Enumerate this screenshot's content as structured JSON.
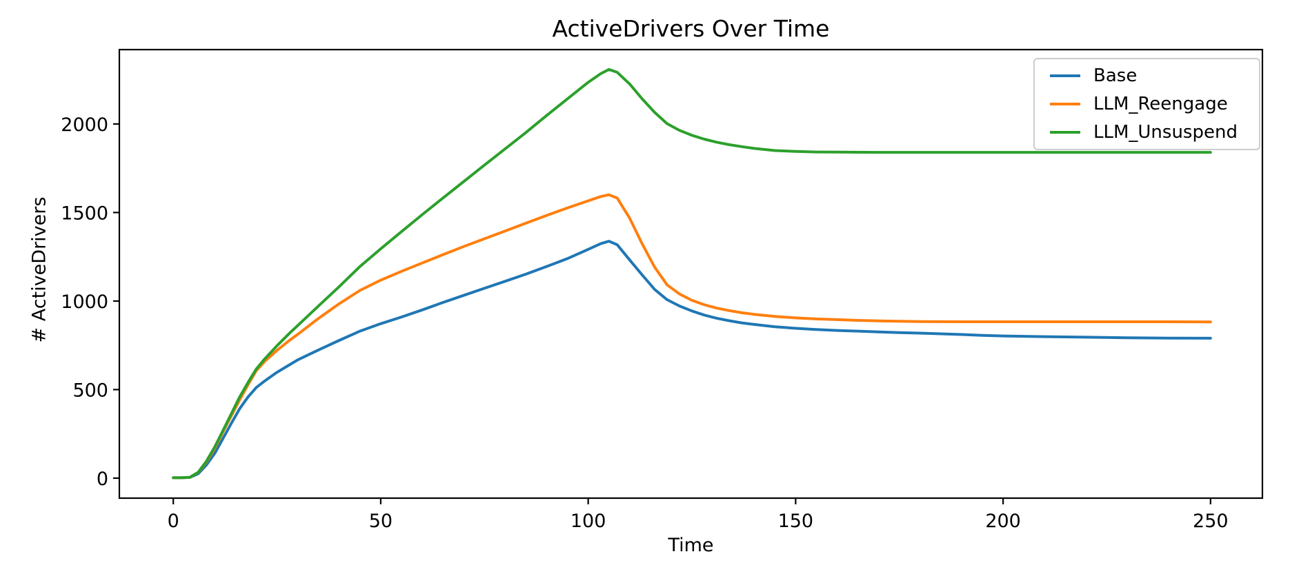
{
  "chart_data": {
    "type": "line",
    "title": "ActiveDrivers Over Time",
    "xlabel": "Time",
    "ylabel": "# ActiveDrivers",
    "x_ticks": [
      0,
      50,
      100,
      150,
      200,
      250
    ],
    "y_ticks": [
      0,
      500,
      1000,
      1500,
      2000
    ],
    "xlim": [
      -13,
      262.5
    ],
    "ylim": [
      -113,
      2420
    ],
    "grid": false,
    "legend_position": "upper right",
    "axis_color": "#000000",
    "series": [
      {
        "name": "Base",
        "color": "#1f77b4",
        "points": [
          [
            0,
            2
          ],
          [
            2,
            2
          ],
          [
            4,
            4
          ],
          [
            6,
            25
          ],
          [
            8,
            75
          ],
          [
            10,
            140
          ],
          [
            12,
            225
          ],
          [
            14,
            310
          ],
          [
            16,
            392
          ],
          [
            18,
            458
          ],
          [
            20,
            512
          ],
          [
            22,
            548
          ],
          [
            25,
            598
          ],
          [
            28,
            640
          ],
          [
            30,
            668
          ],
          [
            35,
            724
          ],
          [
            40,
            778
          ],
          [
            45,
            830
          ],
          [
            50,
            872
          ],
          [
            55,
            910
          ],
          [
            60,
            950
          ],
          [
            65,
            992
          ],
          [
            70,
            1032
          ],
          [
            75,
            1072
          ],
          [
            80,
            1112
          ],
          [
            85,
            1152
          ],
          [
            90,
            1195
          ],
          [
            95,
            1240
          ],
          [
            100,
            1292
          ],
          [
            103,
            1324
          ],
          [
            105,
            1338
          ],
          [
            107,
            1318
          ],
          [
            110,
            1232
          ],
          [
            113,
            1148
          ],
          [
            116,
            1066
          ],
          [
            119,
            1008
          ],
          [
            122,
            972
          ],
          [
            125,
            944
          ],
          [
            128,
            921
          ],
          [
            131,
            903
          ],
          [
            134,
            889
          ],
          [
            137,
            877
          ],
          [
            140,
            868
          ],
          [
            145,
            855
          ],
          [
            150,
            846
          ],
          [
            155,
            839
          ],
          [
            160,
            834
          ],
          [
            165,
            830
          ],
          [
            170,
            826
          ],
          [
            175,
            822
          ],
          [
            180,
            819
          ],
          [
            185,
            815
          ],
          [
            190,
            811
          ],
          [
            195,
            806
          ],
          [
            200,
            803
          ],
          [
            210,
            799
          ],
          [
            220,
            796
          ],
          [
            230,
            793
          ],
          [
            240,
            791
          ],
          [
            250,
            790
          ]
        ]
      },
      {
        "name": "LLM_Reengage",
        "color": "#ff7f0e",
        "points": [
          [
            0,
            2
          ],
          [
            2,
            2
          ],
          [
            4,
            5
          ],
          [
            6,
            32
          ],
          [
            8,
            92
          ],
          [
            10,
            168
          ],
          [
            12,
            262
          ],
          [
            14,
            352
          ],
          [
            16,
            442
          ],
          [
            18,
            527
          ],
          [
            20,
            607
          ],
          [
            22,
            658
          ],
          [
            25,
            722
          ],
          [
            28,
            778
          ],
          [
            30,
            812
          ],
          [
            35,
            902
          ],
          [
            40,
            985
          ],
          [
            45,
            1060
          ],
          [
            50,
            1118
          ],
          [
            55,
            1168
          ],
          [
            60,
            1215
          ],
          [
            65,
            1262
          ],
          [
            70,
            1308
          ],
          [
            75,
            1352
          ],
          [
            80,
            1396
          ],
          [
            85,
            1440
          ],
          [
            90,
            1484
          ],
          [
            95,
            1526
          ],
          [
            100,
            1566
          ],
          [
            103,
            1590
          ],
          [
            105,
            1600
          ],
          [
            107,
            1582
          ],
          [
            110,
            1468
          ],
          [
            113,
            1324
          ],
          [
            116,
            1192
          ],
          [
            119,
            1092
          ],
          [
            122,
            1040
          ],
          [
            125,
            1004
          ],
          [
            128,
            979
          ],
          [
            131,
            960
          ],
          [
            134,
            946
          ],
          [
            137,
            934
          ],
          [
            140,
            925
          ],
          [
            145,
            913
          ],
          [
            150,
            905
          ],
          [
            155,
            899
          ],
          [
            160,
            895
          ],
          [
            165,
            891
          ],
          [
            170,
            888
          ],
          [
            175,
            886
          ],
          [
            180,
            884
          ],
          [
            190,
            883
          ],
          [
            200,
            883
          ],
          [
            210,
            883
          ],
          [
            220,
            883
          ],
          [
            230,
            883
          ],
          [
            240,
            883
          ],
          [
            250,
            882
          ]
        ]
      },
      {
        "name": "LLM_Unsuspend",
        "color": "#2ca02c",
        "points": [
          [
            0,
            2
          ],
          [
            2,
            2
          ],
          [
            4,
            5
          ],
          [
            6,
            33
          ],
          [
            8,
            96
          ],
          [
            10,
            176
          ],
          [
            12,
            270
          ],
          [
            14,
            364
          ],
          [
            16,
            458
          ],
          [
            18,
            540
          ],
          [
            20,
            616
          ],
          [
            22,
            672
          ],
          [
            25,
            748
          ],
          [
            28,
            818
          ],
          [
            30,
            862
          ],
          [
            35,
            972
          ],
          [
            40,
            1082
          ],
          [
            45,
            1195
          ],
          [
            50,
            1295
          ],
          [
            55,
            1392
          ],
          [
            60,
            1488
          ],
          [
            65,
            1582
          ],
          [
            70,
            1675
          ],
          [
            75,
            1768
          ],
          [
            80,
            1860
          ],
          [
            85,
            1952
          ],
          [
            90,
            2048
          ],
          [
            95,
            2142
          ],
          [
            100,
            2235
          ],
          [
            103,
            2284
          ],
          [
            105,
            2308
          ],
          [
            107,
            2292
          ],
          [
            110,
            2226
          ],
          [
            113,
            2142
          ],
          [
            116,
            2066
          ],
          [
            119,
            2002
          ],
          [
            122,
            1964
          ],
          [
            125,
            1936
          ],
          [
            128,
            1914
          ],
          [
            131,
            1897
          ],
          [
            134,
            1883
          ],
          [
            137,
            1872
          ],
          [
            140,
            1862
          ],
          [
            145,
            1850
          ],
          [
            150,
            1845
          ],
          [
            155,
            1842
          ],
          [
            160,
            1841
          ],
          [
            170,
            1840
          ],
          [
            180,
            1840
          ],
          [
            190,
            1840
          ],
          [
            200,
            1840
          ],
          [
            210,
            1840
          ],
          [
            220,
            1840
          ],
          [
            230,
            1840
          ],
          [
            240,
            1840
          ],
          [
            250,
            1840
          ]
        ]
      }
    ]
  }
}
